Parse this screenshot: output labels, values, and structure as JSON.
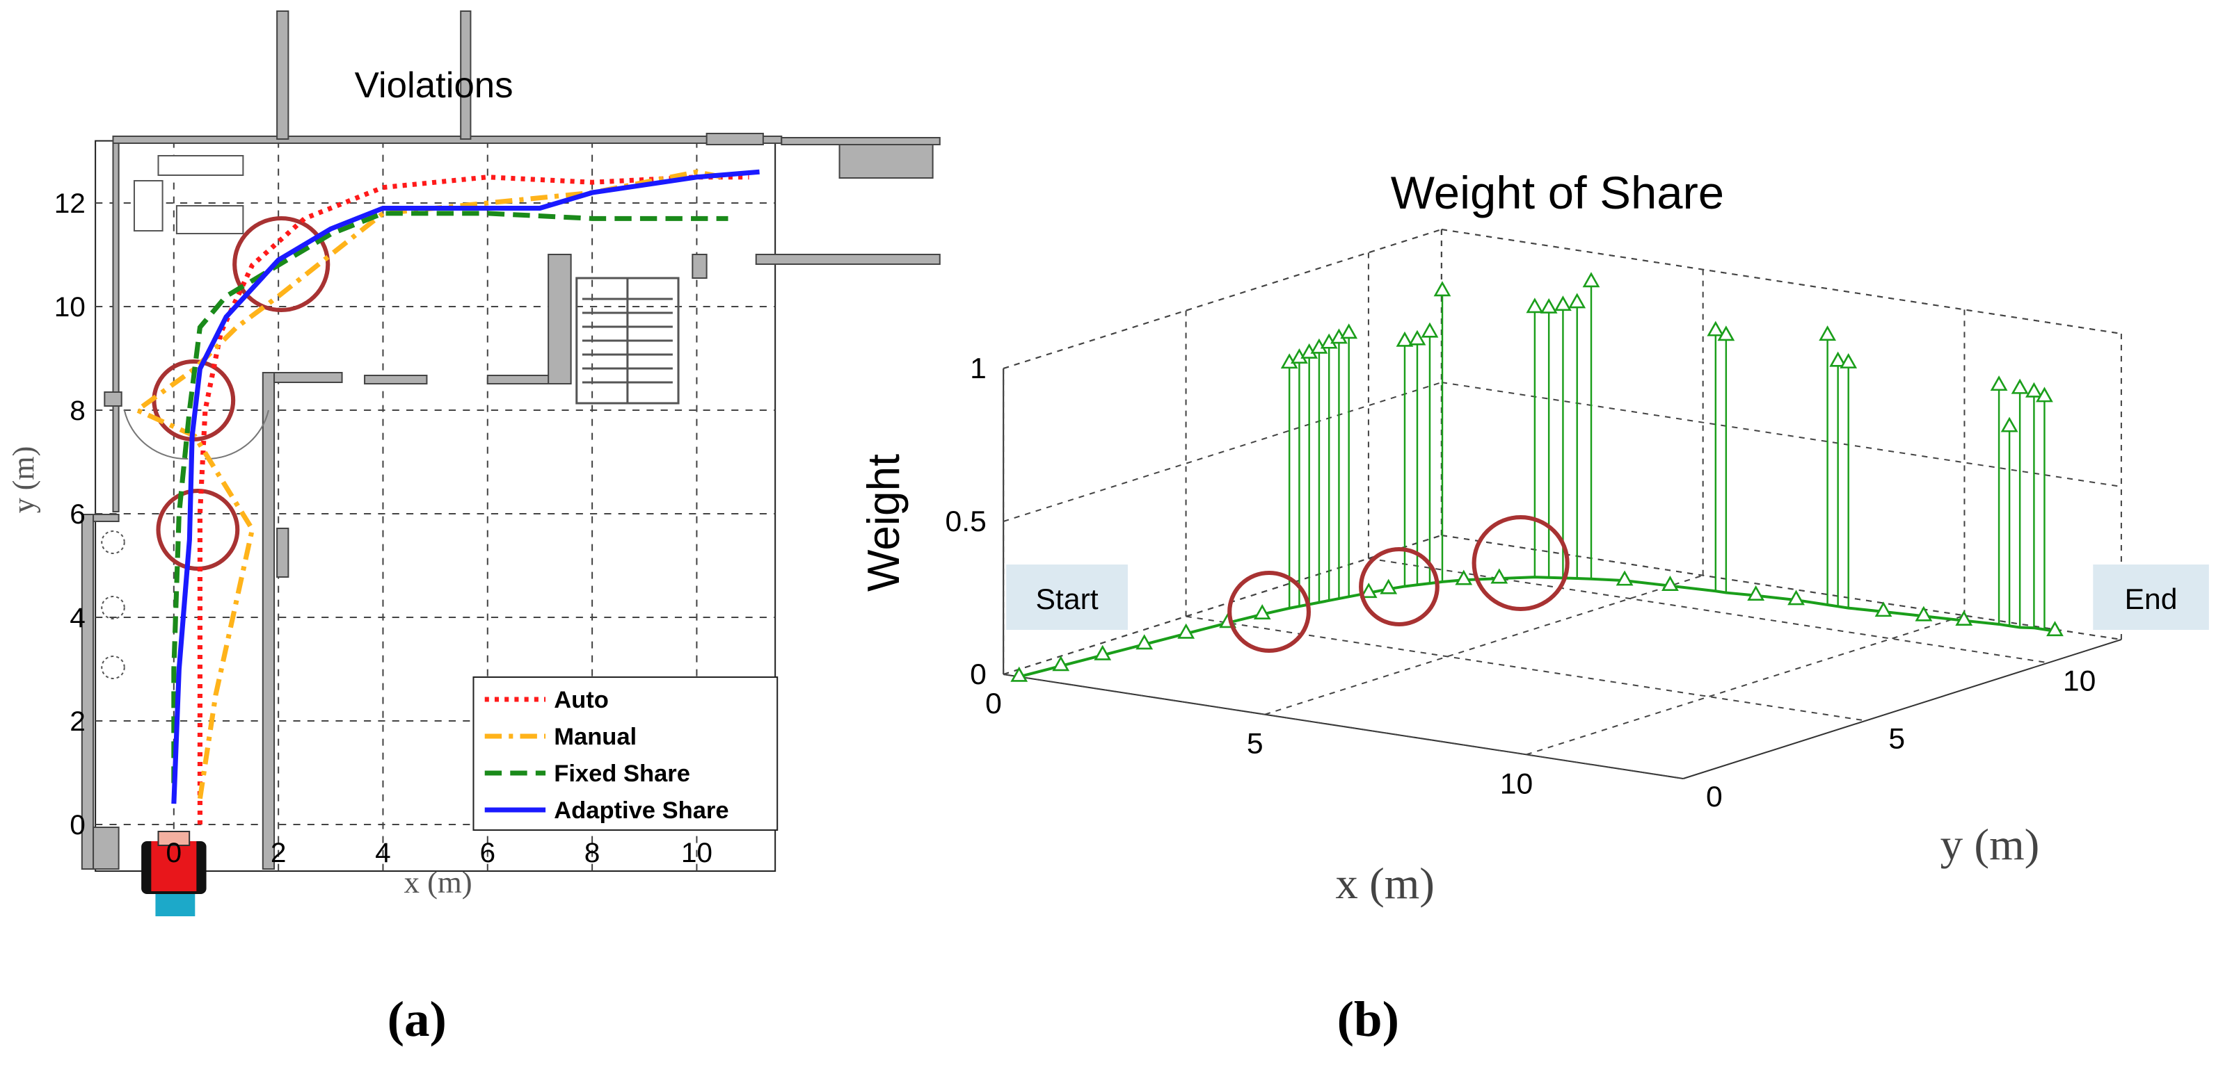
{
  "chart_data": [
    {
      "type": "line",
      "title": "Violations",
      "xlabel": "x (m)",
      "ylabel": "y (m)",
      "caption": "(a)",
      "xlim": [
        -1.5,
        11.5
      ],
      "ylim": [
        -0.9,
        13.2
      ],
      "xticks": [
        0,
        2,
        4,
        6,
        8,
        10
      ],
      "yticks": [
        0,
        2,
        4,
        6,
        8,
        10,
        12
      ],
      "grid": true,
      "legend": "lower right",
      "series": [
        {
          "name": "Auto",
          "color": "#ff1a1a",
          "dash": "dotted",
          "x": [
            0.5,
            0.5,
            0.6,
            0.9,
            1.5,
            2.5,
            4,
            6,
            8,
            10,
            11
          ],
          "values": [
            0,
            6,
            8,
            9.5,
            10.8,
            11.7,
            12.3,
            12.5,
            12.4,
            12.5,
            12.5
          ]
        },
        {
          "name": "Manual",
          "color": "#ffb31a",
          "dash": "dashdot",
          "x": [
            0.5,
            0.8,
            1.5,
            0.4,
            -0.7,
            0.4,
            1.2,
            2,
            3,
            4,
            6,
            8,
            10,
            10.5
          ],
          "values": [
            0.5,
            2.5,
            5.7,
            7.5,
            8,
            8.8,
            9.6,
            10.2,
            11,
            11.8,
            12,
            12.2,
            12.6,
            12.5
          ]
        },
        {
          "name": "Fixed Share",
          "color": "#1a8a1a",
          "dash": "dashed",
          "x": [
            0,
            0,
            0.1,
            0.3,
            0.5,
            1,
            2,
            3,
            4,
            6,
            8,
            10,
            10.6
          ],
          "values": [
            0.8,
            3,
            6,
            8,
            9.6,
            10.2,
            10.8,
            11.4,
            11.8,
            11.8,
            11.7,
            11.7,
            11.7
          ]
        },
        {
          "name": "Adaptive Share",
          "color": "#1a1aff",
          "dash": "solid",
          "x": [
            0,
            0.1,
            0.3,
            0.35,
            0.5,
            1,
            2,
            3,
            4,
            6,
            7,
            8,
            10,
            11.2
          ],
          "values": [
            0.4,
            3,
            5.5,
            7.5,
            8.8,
            9.8,
            10.9,
            11.5,
            11.9,
            11.9,
            11.9,
            12.2,
            12.5,
            12.6
          ]
        }
      ]
    },
    {
      "type": "stem3d",
      "title": "Weight of Share",
      "xlabel": "x (m)",
      "ylabel": "y (m)",
      "zlabel": "Weight",
      "caption": "(b)",
      "annotations": [
        "Start",
        "End"
      ],
      "color": "#1a9e1a",
      "xlim": [
        0,
        13
      ],
      "ylim": [
        0,
        12
      ],
      "zlim": [
        0,
        1
      ],
      "xticks": [
        0,
        5,
        10
      ],
      "yticks": [
        0,
        5,
        10
      ],
      "zticks": [
        0,
        0.5,
        1
      ],
      "grid": true,
      "x": [
        0.3,
        0.4,
        0.5,
        0.6,
        0.7,
        0.8,
        0.9,
        1.0,
        1.05,
        1.1,
        1.15,
        1.2,
        1.25,
        1.3,
        1.4,
        1.5,
        1.6,
        1.7,
        1.8,
        1.9,
        2.1,
        2.5,
        2.9,
        3.1,
        3.3,
        3.5,
        3.7,
        4.2,
        5.0,
        5.8,
        6.0,
        6.5,
        7.2,
        7.8,
        8.0,
        8.2,
        8.8,
        9.5,
        10.2,
        10.8,
        11.0,
        11.2,
        11.4,
        11.6,
        11.8
      ],
      "y": [
        0,
        1,
        2,
        3,
        4,
        5,
        5.8,
        6.4,
        6.6,
        6.8,
        7.0,
        7.2,
        7.4,
        7.6,
        8.0,
        8.4,
        8.7,
        8.9,
        9.1,
        9.3,
        9.6,
        10.0,
        10.4,
        10.5,
        10.6,
        10.7,
        10.8,
        11.0,
        11.1,
        11.2,
        11.2,
        11.3,
        11.4,
        11.4,
        11.4,
        11.4,
        11.5,
        11.6,
        11.7,
        11.8,
        11.8,
        11.8,
        11.9,
        11.9,
        11.9
      ],
      "values": [
        0,
        0,
        0,
        0,
        0,
        0,
        0,
        0.8,
        0.81,
        0.82,
        0.83,
        0.84,
        0.85,
        0.86,
        0,
        0,
        0.8,
        0.8,
        0.82,
        0.95,
        0,
        0,
        0.88,
        0.88,
        0.89,
        0.9,
        0.97,
        0,
        0,
        0.85,
        0.84,
        0,
        0,
        0.88,
        0.8,
        0.8,
        0,
        0,
        0,
        0.78,
        0.65,
        0.78,
        0.77,
        0.76,
        0
      ]
    }
  ]
}
